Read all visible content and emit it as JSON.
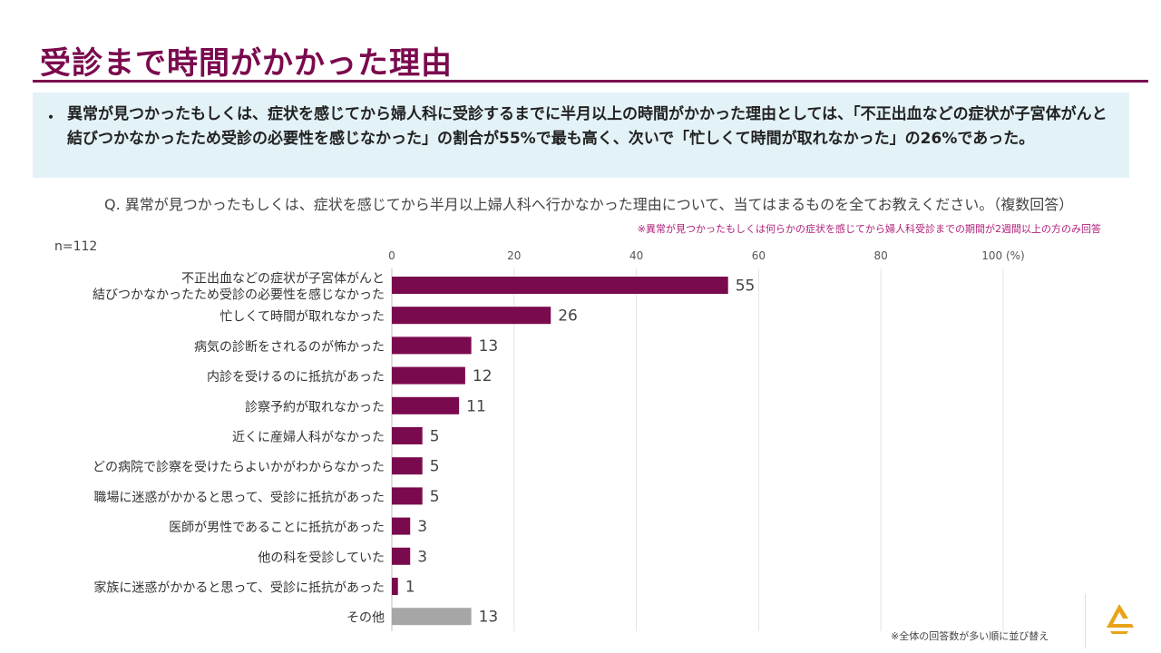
{
  "page": {
    "title": "受診まで時間がかかった理由",
    "bullet": "・",
    "summary": "異常が見つかったもしくは、症状を感じてから婦人科に受診するまでに半月以上の時間がかかった理由としては、「不正出血などの症状が子宮体がんと結びつかなかったため受診の必要性を感じなかった」の割合が55%で最も高く、次いで「忙しくて時間が取れなかった」の26%であった。",
    "question": "Q. 異常が見つかったもしくは、症状を感じてから半月以上婦人科へ行かなかった理由について、当てはまるものを全てお教えください。（複数回答）",
    "note": "※異常が見つかったもしくは何らかの症状を感じてから婦人科受診までの期間が2週間以上の方のみ回答",
    "sample": "n=112",
    "sort_note": "※全体の回答数が多い順に並び替え",
    "logo": "brand-logo"
  },
  "chart_data": {
    "type": "bar",
    "orientation": "horizontal",
    "unit": "(%)",
    "xlim": [
      0,
      100
    ],
    "ticks": [
      0,
      20,
      40,
      60,
      80,
      100
    ],
    "grid": true,
    "categories": [
      [
        "不正出血などの症状が子宮体がんと",
        "結びつかなかったため受診の必要性を感じなかった"
      ],
      [
        "忙しくて時間が取れなかった"
      ],
      [
        "病気の診断をされるのが怖かった"
      ],
      [
        "内診を受けるのに抵抗があった"
      ],
      [
        "診察予約が取れなかった"
      ],
      [
        "近くに産婦人科がなかった"
      ],
      [
        "どの病院で診察を受けたらよいかがわからなかった"
      ],
      [
        "職場に迷惑がかかると思って、受診に抵抗があった"
      ],
      [
        "医師が男性であることに抵抗があった"
      ],
      [
        "他の科を受診していた"
      ],
      [
        "家族に迷惑がかかると思って、受診に抵抗があった"
      ],
      [
        "その他"
      ]
    ],
    "values": [
      55,
      26,
      13,
      12,
      11,
      5,
      5,
      5,
      3,
      3,
      1,
      13
    ],
    "colors": [
      "#7a0a4e",
      "#7a0a4e",
      "#7a0a4e",
      "#7a0a4e",
      "#7a0a4e",
      "#7a0a4e",
      "#7a0a4e",
      "#7a0a4e",
      "#7a0a4e",
      "#7a0a4e",
      "#7a0a4e",
      "#a6a6a6"
    ]
  }
}
